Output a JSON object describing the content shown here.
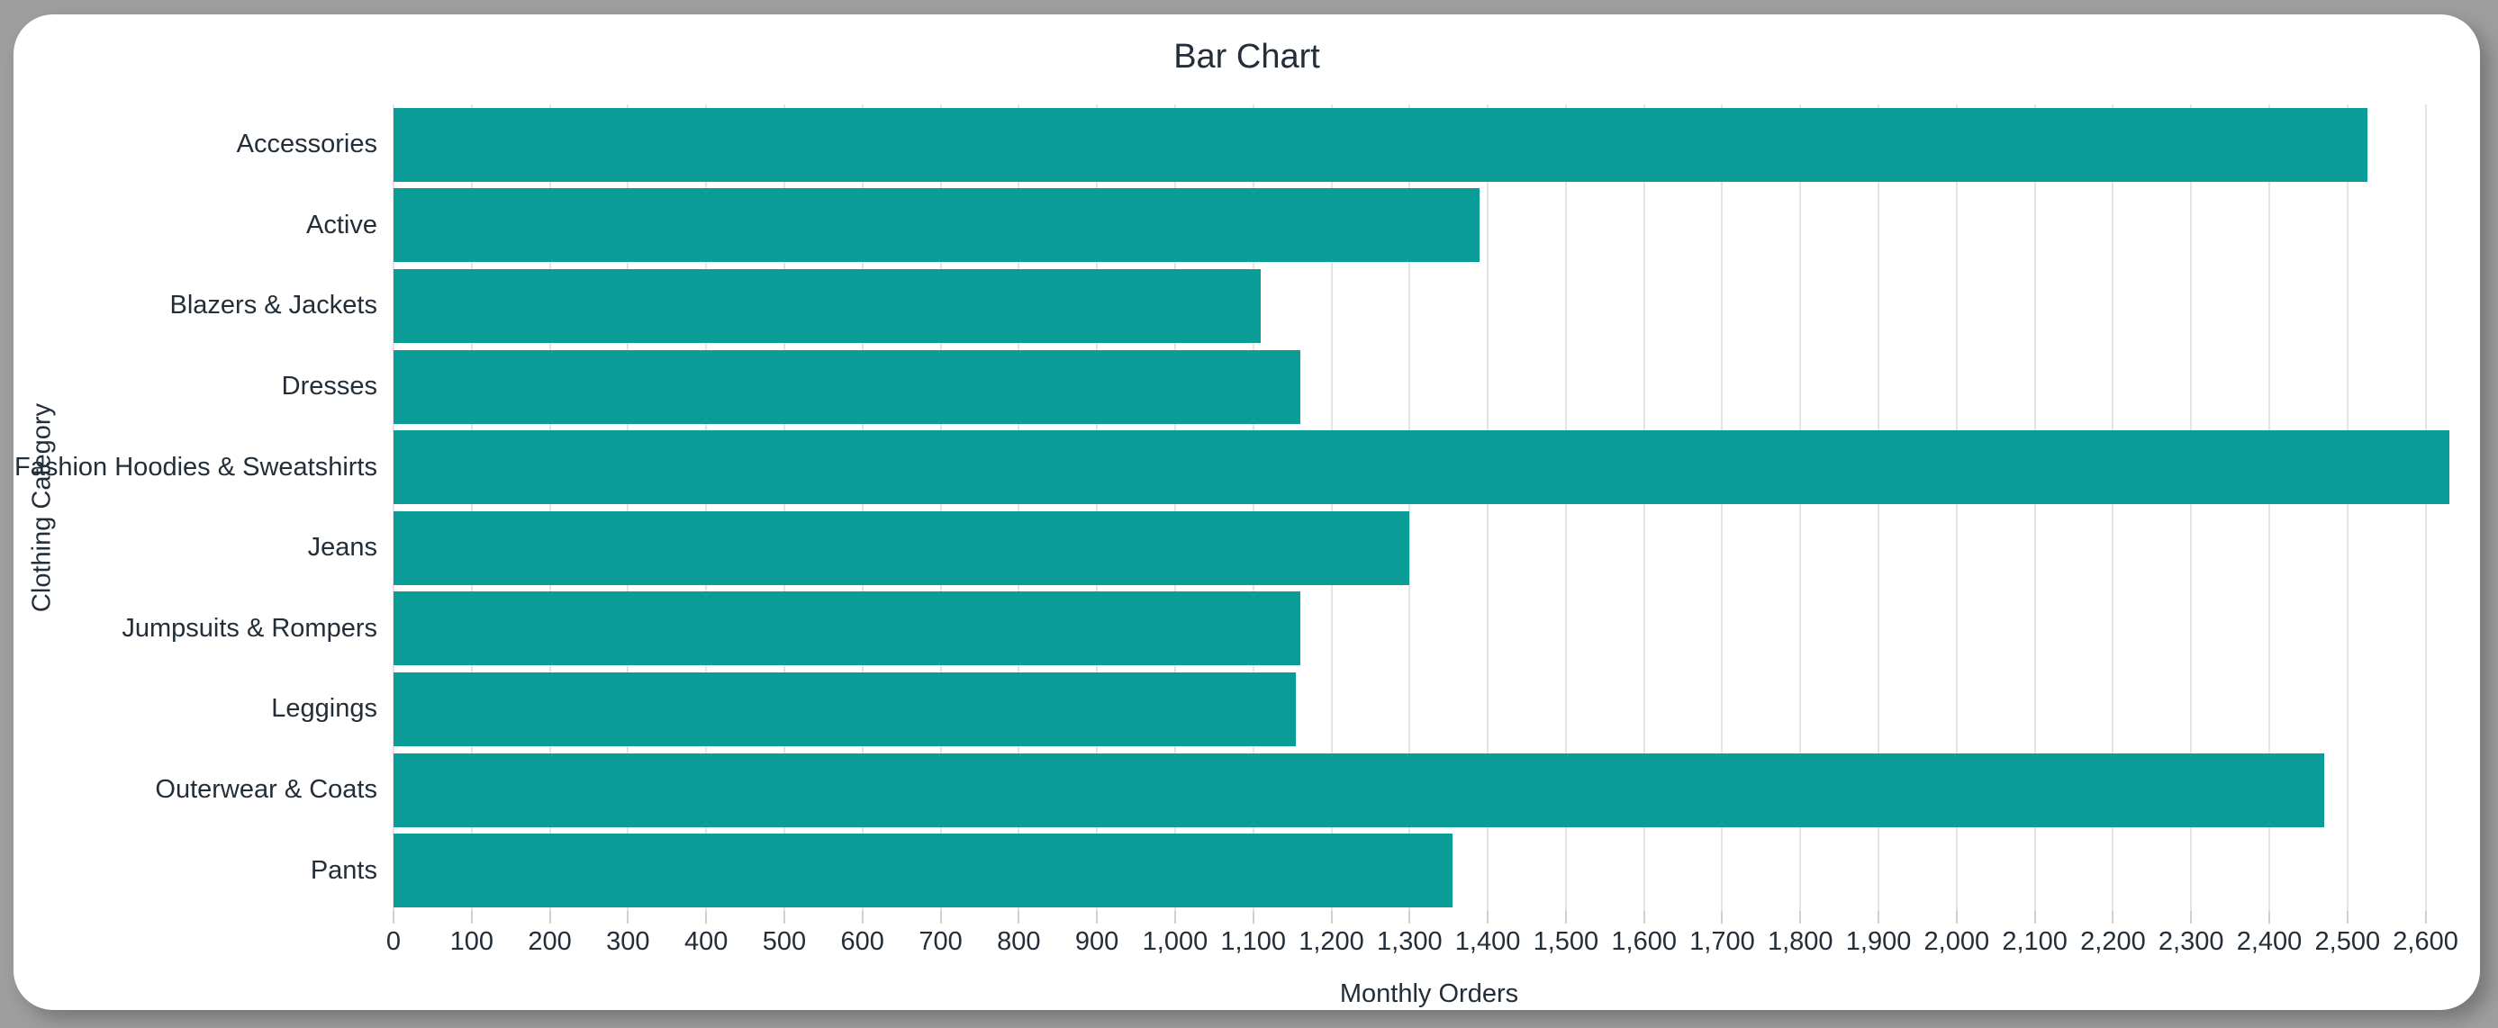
{
  "window": {
    "frame_color": "#9e9e9e",
    "surface_color": "#ffffff"
  },
  "chart_data": {
    "type": "bar",
    "orientation": "horizontal",
    "title": "Bar Chart",
    "xlabel": "Monthly Orders",
    "ylabel": "Clothing Category",
    "categories": [
      "Accessories",
      "Active",
      "Blazers & Jackets",
      "Dresses",
      "Fashion Hoodies & Sweatshirts",
      "Jeans",
      "Jumpsuits & Rompers",
      "Leggings",
      "Outerwear & Coats",
      "Pants"
    ],
    "values": [
      2525,
      1390,
      1110,
      1160,
      2630,
      1300,
      1160,
      1155,
      2470,
      1355
    ],
    "xlim": [
      0,
      2650
    ],
    "xtick_step": 100,
    "xtick_labels": [
      "0",
      "100",
      "200",
      "300",
      "400",
      "500",
      "600",
      "700",
      "800",
      "900",
      "1,000",
      "1,100",
      "1,200",
      "1,300",
      "1,400",
      "1,500",
      "1,600",
      "1,700",
      "1,800",
      "1,900",
      "2,000",
      "2,100",
      "2,200",
      "2,300",
      "2,400",
      "2,500",
      "2,600"
    ],
    "grid": true,
    "legend": "none",
    "bar_color": "#0a9c97",
    "gridline_color": "#e4e4e4",
    "tick_mark_color": "#d0d0d0",
    "text_color": "#232e38"
  }
}
